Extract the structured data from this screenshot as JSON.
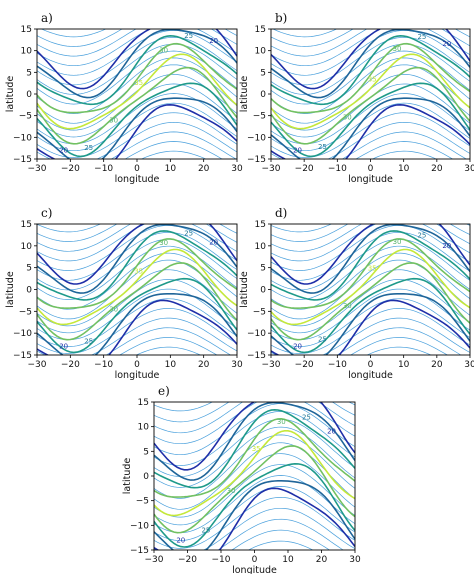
{
  "figure": {
    "panels": [
      {
        "label": "a)",
        "xlabel": "longitude",
        "ylabel": "latitude"
      },
      {
        "label": "b)",
        "xlabel": "longitude",
        "ylabel": "latitude"
      },
      {
        "label": "c)",
        "xlabel": "longitude",
        "ylabel": "latitude"
      },
      {
        "label": "d)",
        "xlabel": "longitude",
        "ylabel": "latitude"
      },
      {
        "label": "e)",
        "xlabel": "longitude",
        "ylabel": "latitude"
      }
    ]
  },
  "chart_data": [
    {
      "type": "contour",
      "panel": "a)",
      "xlabel": "longitude",
      "ylabel": "latitude",
      "xlim": [
        -30,
        30
      ],
      "ylim": [
        -15,
        15
      ],
      "xticks": [
        -30,
        -20,
        -10,
        0,
        10,
        20,
        30
      ],
      "yticks": [
        -15,
        -10,
        -5,
        0,
        5,
        10,
        15
      ],
      "contour_labels": [
        "20",
        "25",
        "30",
        "35",
        "30",
        "25",
        "20"
      ],
      "colors": {
        "low": "#1f2fa8",
        "mid": "#1f9a8a",
        "high": "#c5e83a",
        "streamline": "#2a8fd6"
      }
    },
    {
      "type": "contour",
      "panel": "b)",
      "xlabel": "longitude",
      "ylabel": "latitude",
      "xlim": [
        -30,
        30
      ],
      "ylim": [
        -15,
        15
      ],
      "xticks": [
        -30,
        -20,
        -10,
        0,
        10,
        20,
        30
      ],
      "yticks": [
        -15,
        -10,
        -5,
        0,
        5,
        10,
        15
      ],
      "contour_labels": [
        "20",
        "25",
        "30",
        "35",
        "30",
        "25",
        "20"
      ],
      "colors": {
        "low": "#1f2fa8",
        "mid": "#1f9a8a",
        "high": "#c5e83a",
        "streamline": "#2a8fd6"
      }
    },
    {
      "type": "contour",
      "panel": "c)",
      "xlabel": "longitude",
      "ylabel": "latitude",
      "xlim": [
        -30,
        30
      ],
      "ylim": [
        -15,
        15
      ],
      "xticks": [
        -30,
        -20,
        -10,
        0,
        10,
        20,
        30
      ],
      "yticks": [
        -15,
        -10,
        -5,
        0,
        5,
        10,
        15
      ],
      "contour_labels": [
        "20",
        "25",
        "30",
        "35",
        "30",
        "25",
        "20"
      ],
      "colors": {
        "low": "#1f2fa8",
        "mid": "#1f9a8a",
        "high": "#c5e83a",
        "streamline": "#2a8fd6"
      }
    },
    {
      "type": "contour",
      "panel": "d)",
      "xlabel": "longitude",
      "ylabel": "latitude",
      "xlim": [
        -30,
        30
      ],
      "ylim": [
        -15,
        15
      ],
      "xticks": [
        -30,
        -20,
        -10,
        0,
        10,
        20,
        30
      ],
      "yticks": [
        -15,
        -10,
        -5,
        0,
        5,
        10,
        15
      ],
      "contour_labels": [
        "20",
        "25",
        "30",
        "35",
        "30",
        "25",
        "20"
      ],
      "colors": {
        "low": "#1f2fa8",
        "mid": "#1f9a8a",
        "high": "#c5e83a",
        "streamline": "#2a8fd6"
      }
    },
    {
      "type": "contour",
      "panel": "e)",
      "xlabel": "longitude",
      "ylabel": "latitude",
      "xlim": [
        -30,
        30
      ],
      "ylim": [
        -15,
        15
      ],
      "xticks": [
        -30,
        -20,
        -10,
        0,
        10,
        20,
        30
      ],
      "yticks": [
        -15,
        -10,
        -5,
        0,
        5,
        10,
        15
      ],
      "contour_labels": [
        "20",
        "25",
        "30",
        "35",
        "30",
        "25",
        "20"
      ],
      "colors": {
        "low": "#1f2fa8",
        "mid": "#1f9a8a",
        "high": "#c5e83a",
        "streamline": "#2a8fd6"
      }
    }
  ]
}
